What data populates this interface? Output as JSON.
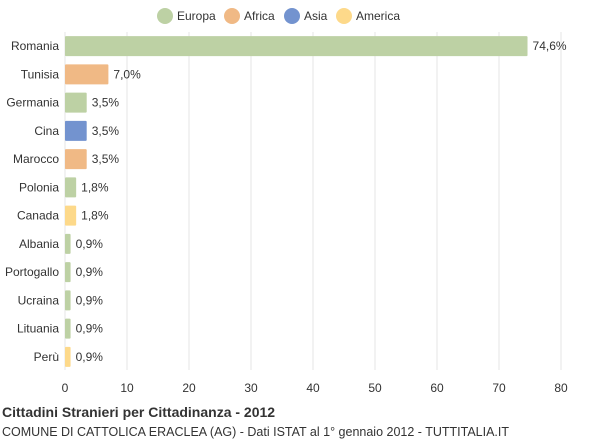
{
  "chart_data": {
    "type": "bar",
    "orientation": "horizontal",
    "xlim": [
      0,
      80
    ],
    "xticks": [
      "0",
      "10",
      "20",
      "30",
      "40",
      "50",
      "60",
      "70",
      "80"
    ],
    "grid": true,
    "legend": [
      {
        "label": "Europa",
        "color": "#bdd1a4"
      },
      {
        "label": "Africa",
        "color": "#f0b985"
      },
      {
        "label": "Asia",
        "color": "#7393cf"
      },
      {
        "label": "America",
        "color": "#fdd98a"
      }
    ],
    "categories": [
      "Romania",
      "Tunisia",
      "Germania",
      "Cina",
      "Marocco",
      "Polonia",
      "Canada",
      "Albania",
      "Portogallo",
      "Ucraina",
      "Lituania",
      "Perù"
    ],
    "values": [
      74.6,
      7.0,
      3.5,
      3.5,
      3.5,
      1.8,
      1.8,
      0.9,
      0.9,
      0.9,
      0.9,
      0.9
    ],
    "value_labels": [
      "74,6%",
      "7,0%",
      "3,5%",
      "3,5%",
      "3,5%",
      "1,8%",
      "1,8%",
      "0,9%",
      "0,9%",
      "0,9%",
      "0,9%",
      "0,9%"
    ],
    "continents": [
      "Europa",
      "Africa",
      "Europa",
      "Asia",
      "Africa",
      "Europa",
      "America",
      "Europa",
      "Europa",
      "Europa",
      "Europa",
      "America"
    ]
  },
  "footer": {
    "title": "Cittadini Stranieri per Cittadinanza - 2012",
    "subtitle": "COMUNE DI CATTOLICA ERACLEA (AG) - Dati ISTAT al 1° gennaio 2012 - TUTTITALIA.IT"
  }
}
